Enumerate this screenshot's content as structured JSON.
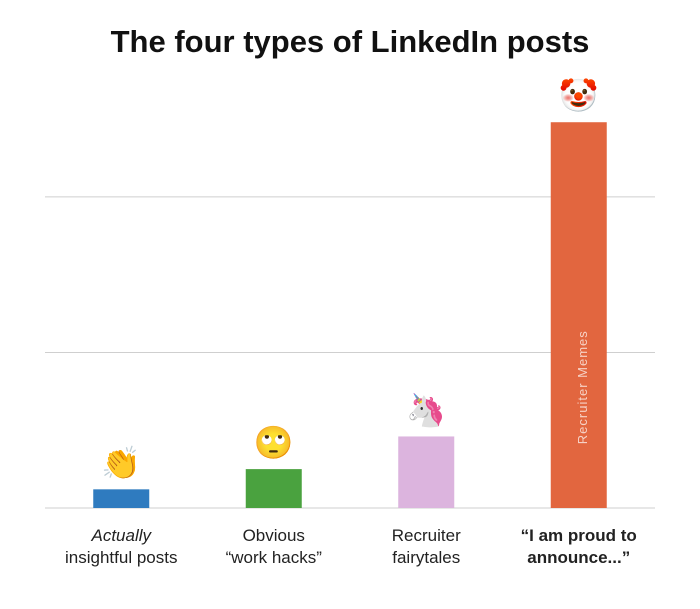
{
  "chart_data": {
    "type": "bar",
    "title": "The four types of LinkedIn posts",
    "categories": [
      "Actually\ninsightful posts",
      "Obvious\n“work hacks”",
      "Recruiter\nfairytales",
      "“I am proud to\nannounce...”"
    ],
    "values": [
      0.12,
      0.25,
      0.46,
      2.48
    ],
    "colors": [
      "#2f7bbf",
      "#4aa23f",
      "#dcb4de",
      "#e2663f"
    ],
    "icons": [
      "👏",
      "🙄",
      "🦄",
      "🤡"
    ],
    "watermark": "Recruiter Memes",
    "ylim": [
      0,
      2.7
    ],
    "yticks": [
      0,
      1,
      2
    ],
    "grid": true
  }
}
